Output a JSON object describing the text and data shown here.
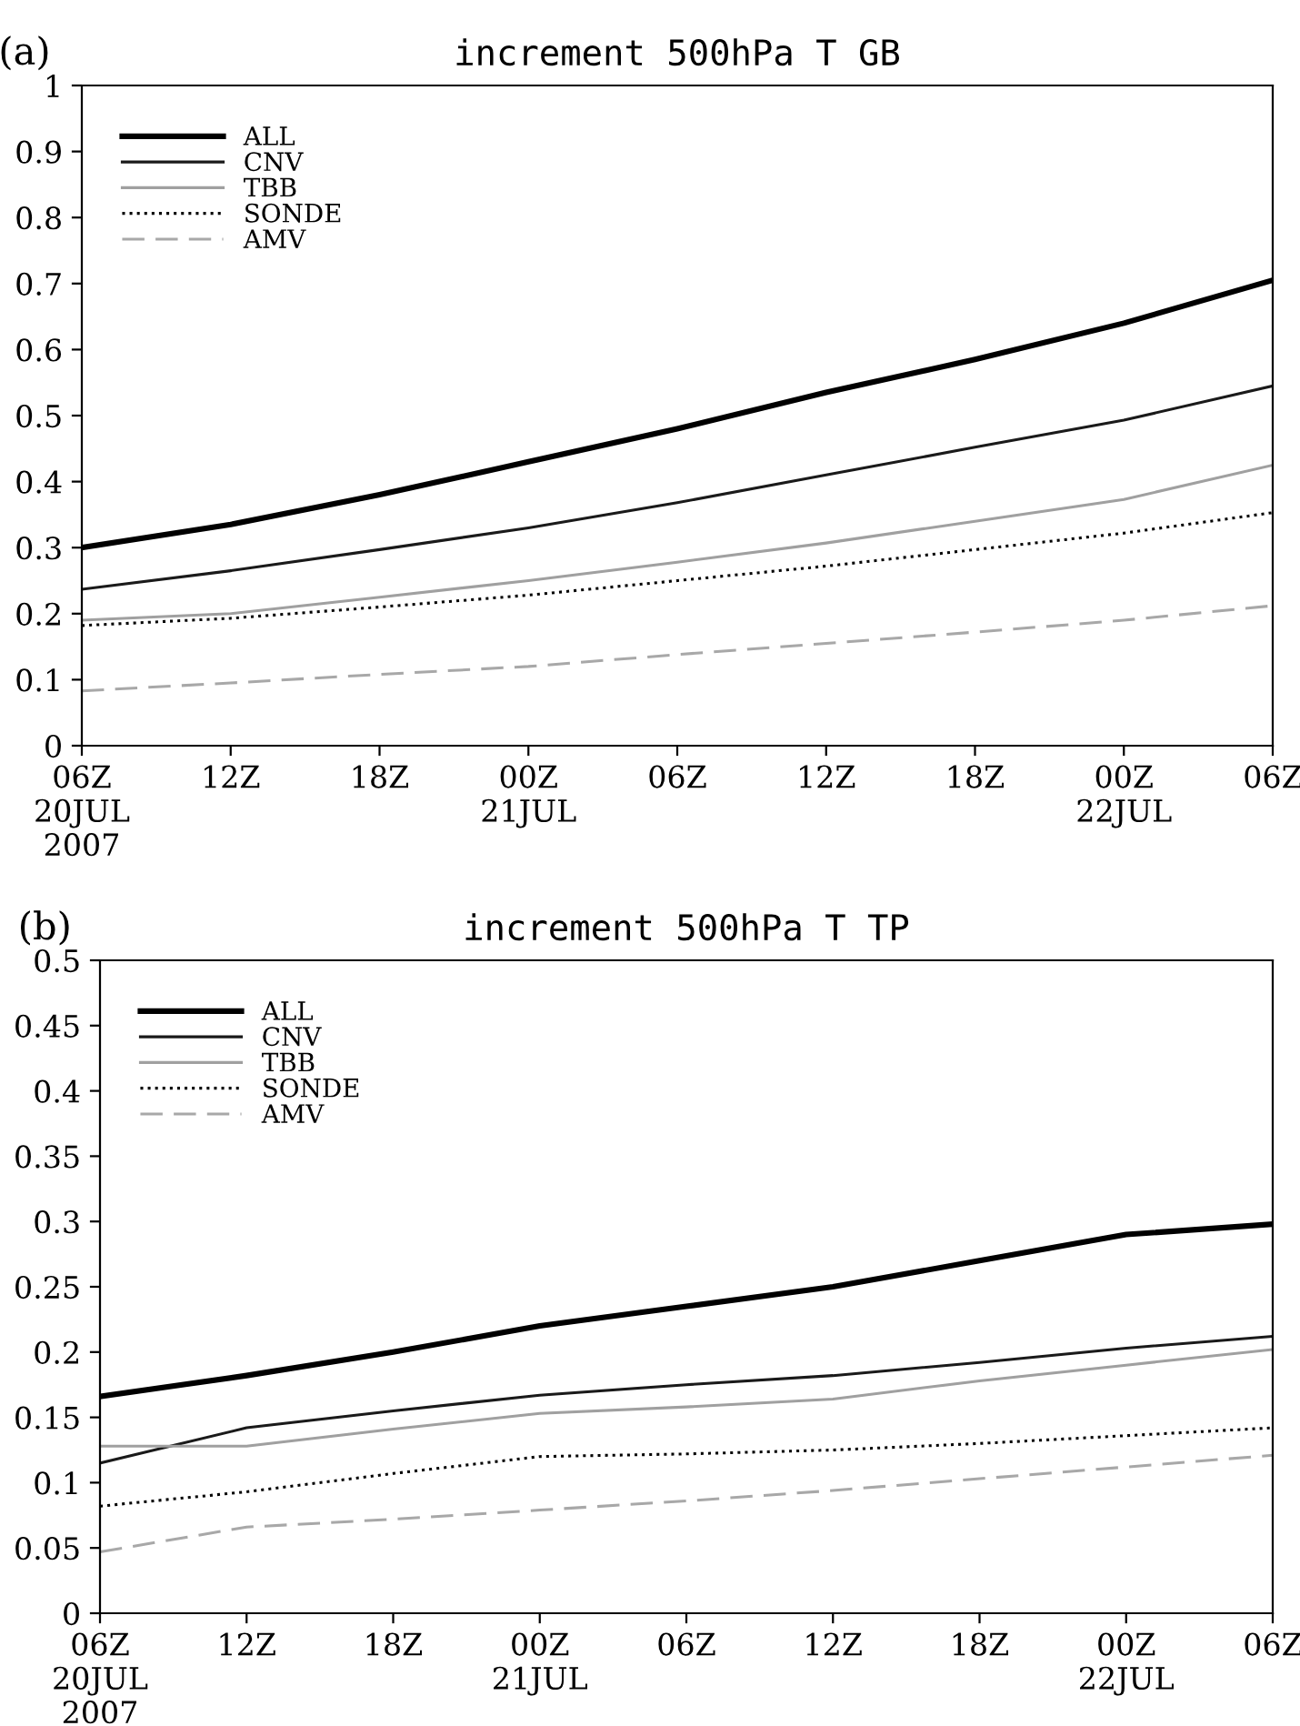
{
  "chart_data": [
    {
      "type": "line",
      "title": "increment 500hPa T GB",
      "annotations": [
        "(a)"
      ],
      "categories": [
        "06Z\n20JUL\n2007",
        "12Z",
        "18Z",
        "00Z\n21JUL",
        "06Z",
        "12Z",
        "18Z",
        "00Z\n22JUL",
        "06Z"
      ],
      "ylim": [
        0,
        1
      ],
      "yticks": [
        0,
        0.1,
        0.2,
        0.3,
        0.4,
        0.5,
        0.6,
        0.7,
        0.8,
        0.9,
        1
      ],
      "grid": false,
      "legend": "top left",
      "series": [
        {
          "name": "ALL",
          "color": "#000000",
          "line_style": "solid",
          "values": [
            0.3,
            0.335,
            0.38,
            0.43,
            0.48,
            0.535,
            0.585,
            0.64,
            0.705
          ]
        },
        {
          "name": "CNV",
          "color": "#1a1a1a",
          "line_style": "solid",
          "values": [
            0.237,
            0.265,
            0.297,
            0.33,
            0.368,
            0.41,
            0.452,
            0.493,
            0.545
          ]
        },
        {
          "name": "TBB",
          "color": "#a0a0a0",
          "line_style": "solid",
          "values": [
            0.19,
            0.2,
            0.225,
            0.25,
            0.278,
            0.307,
            0.34,
            0.373,
            0.425
          ]
        },
        {
          "name": "SONDE",
          "color": "#000000",
          "line_style": "dotted",
          "values": [
            0.182,
            0.193,
            0.21,
            0.228,
            0.25,
            0.272,
            0.297,
            0.322,
            0.353
          ]
        },
        {
          "name": "AMV",
          "color": "#a8a8a8",
          "line_style": "dashed",
          "values": [
            0.083,
            0.095,
            0.108,
            0.12,
            0.138,
            0.155,
            0.172,
            0.19,
            0.212
          ]
        }
      ]
    },
    {
      "type": "line",
      "title": "increment 500hPa T TP",
      "annotations": [
        "(b)"
      ],
      "categories": [
        "06Z\n20JUL\n2007",
        "12Z",
        "18Z",
        "00Z\n21JUL",
        "06Z",
        "12Z",
        "18Z",
        "00Z\n22JUL",
        "06Z"
      ],
      "ylim": [
        0,
        0.5
      ],
      "yticks": [
        0,
        0.05,
        0.1,
        0.15,
        0.2,
        0.25,
        0.3,
        0.35,
        0.4,
        0.45,
        0.5
      ],
      "grid": false,
      "legend": "top left",
      "series": [
        {
          "name": "ALL",
          "color": "#000000",
          "line_style": "solid",
          "values": [
            0.166,
            0.182,
            0.2,
            0.22,
            0.235,
            0.25,
            0.27,
            0.29,
            0.298
          ]
        },
        {
          "name": "CNV",
          "color": "#1a1a1a",
          "line_style": "solid",
          "values": [
            0.115,
            0.142,
            0.155,
            0.167,
            0.175,
            0.182,
            0.192,
            0.203,
            0.212
          ]
        },
        {
          "name": "TBB",
          "color": "#a0a0a0",
          "line_style": "solid",
          "values": [
            0.128,
            0.128,
            0.141,
            0.153,
            0.158,
            0.164,
            0.178,
            0.19,
            0.202
          ]
        },
        {
          "name": "SONDE",
          "color": "#000000",
          "line_style": "dotted",
          "values": [
            0.082,
            0.093,
            0.107,
            0.12,
            0.122,
            0.125,
            0.13,
            0.136,
            0.142
          ]
        },
        {
          "name": "AMV",
          "color": "#a8a8a8",
          "line_style": "dashed",
          "values": [
            0.047,
            0.066,
            0.072,
            0.079,
            0.086,
            0.094,
            0.103,
            0.112,
            0.121
          ]
        }
      ]
    }
  ]
}
